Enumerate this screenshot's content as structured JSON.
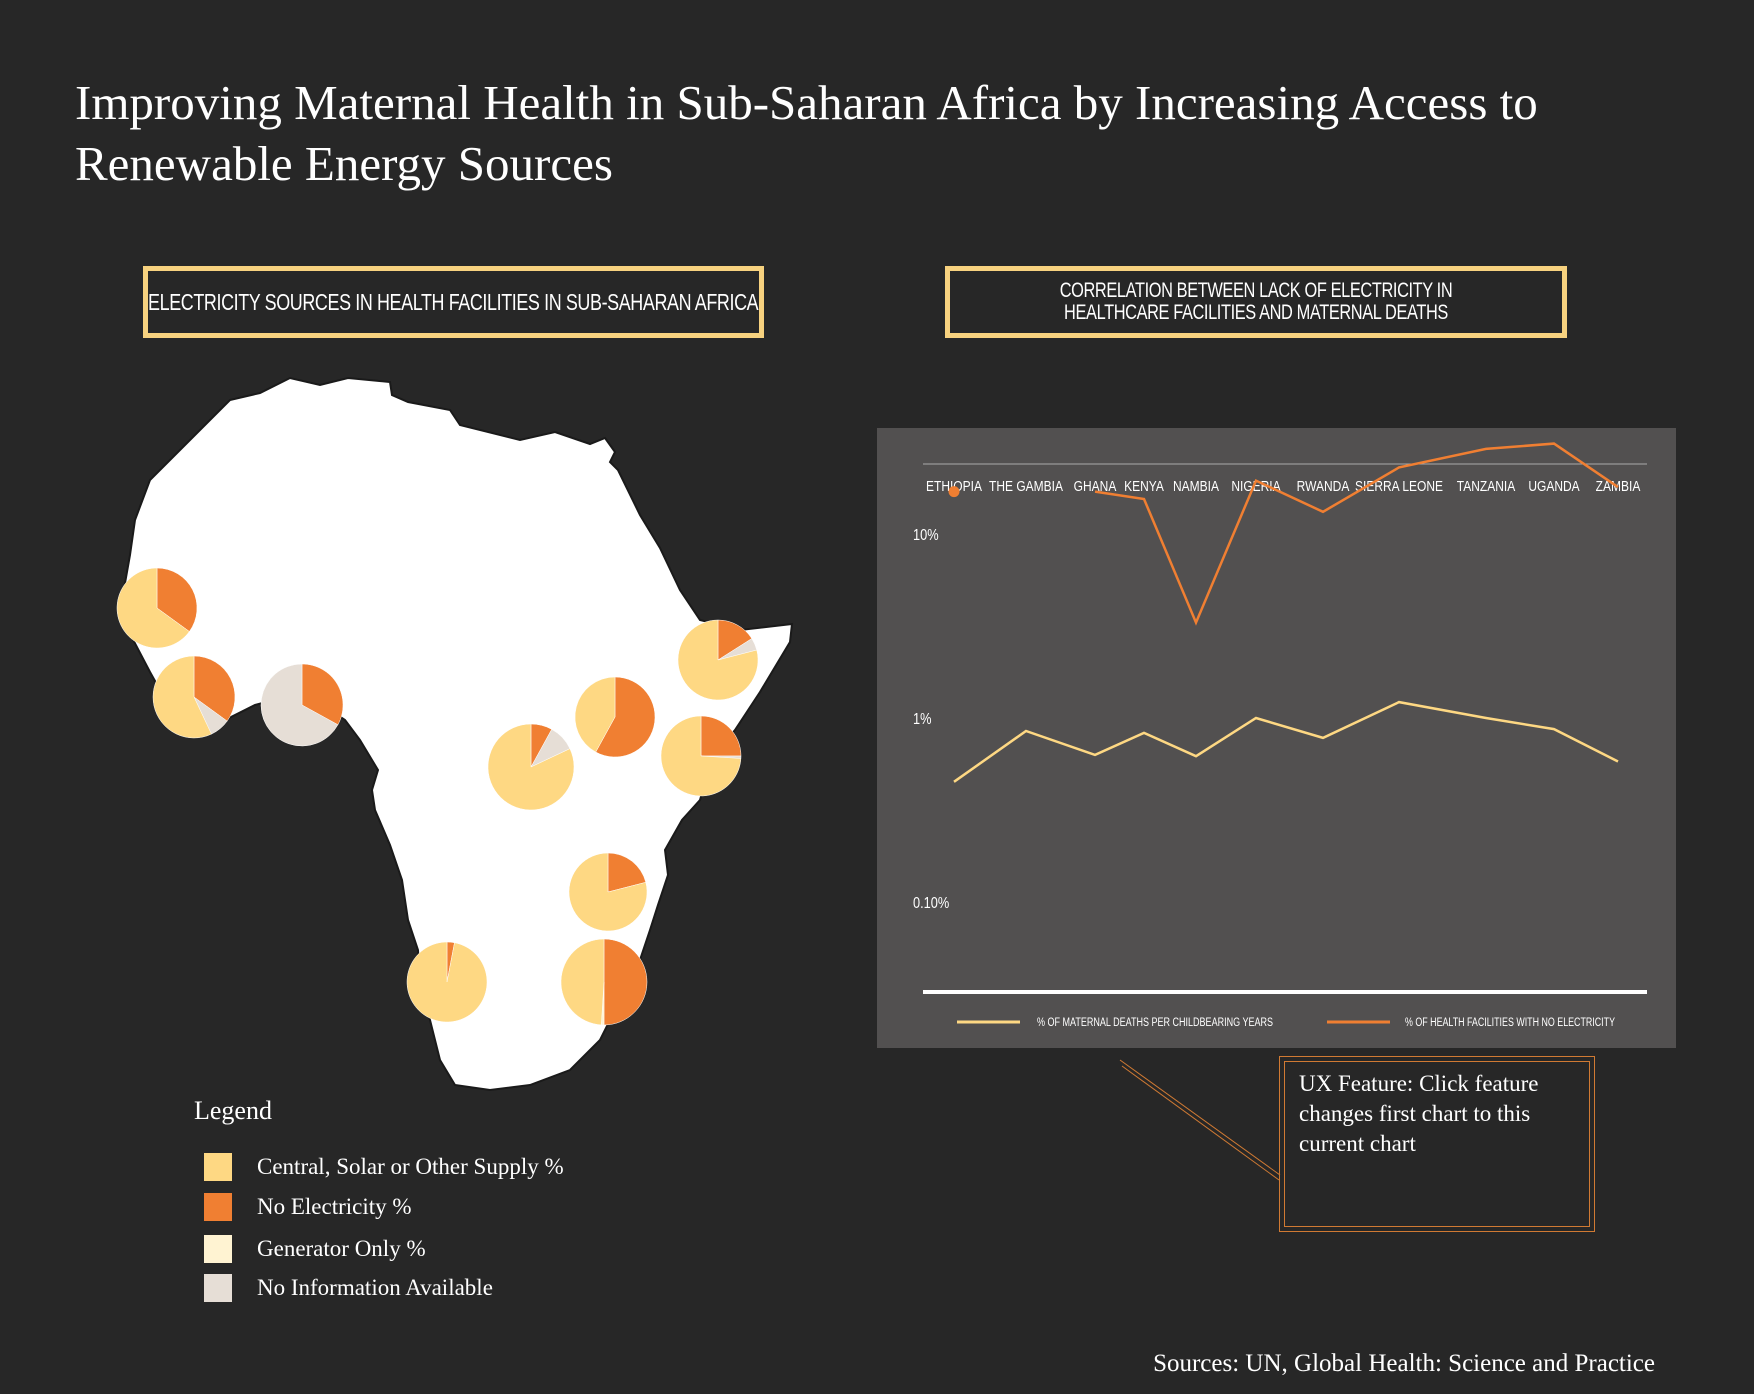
{
  "title": "Improving Maternal Health in Sub-Saharan Africa by Increasing Access to Renewable Energy Sources",
  "map_section": {
    "heading": "Electricity Sources in Health Facilities in Sub-Saharan Africa"
  },
  "chart_section": {
    "heading": "Correlation between lack of electricity in healthcare facilities and maternal deaths"
  },
  "colors": {
    "central": "#fed883",
    "no_electricity": "#f07f32",
    "generator": "#fff3d2",
    "no_info": "#e6ded6",
    "background": "#272727",
    "panel": "#525050",
    "africa": "#ffffff",
    "accent_border": "#f7d27f"
  },
  "legend": {
    "title": "Legend",
    "items": [
      {
        "label": "Central, Solar or Other Supply %",
        "color": "#fed883"
      },
      {
        "label": "No Electricity %",
        "color": "#f07f32"
      },
      {
        "label": "Generator Only %",
        "color": "#fff3d2"
      },
      {
        "label": "No Information Available",
        "color": "#e6ded6"
      }
    ]
  },
  "pie_charts": [
    {
      "central": 0.65,
      "no_electricity": 0.35,
      "generator": 0,
      "no_info": 0
    },
    {
      "central": 0.57,
      "no_electricity": 0.35,
      "generator": 0,
      "no_info": 0.08
    },
    {
      "central": 0,
      "no_electricity": 0.33,
      "generator": 0,
      "no_info": 0.67
    },
    {
      "central": 0.82,
      "no_electricity": 0.08,
      "generator": 0,
      "no_info": 0.1
    },
    {
      "central": 0.42,
      "no_electricity": 0.58,
      "generator": 0,
      "no_info": 0
    },
    {
      "central": 0.79,
      "no_electricity": 0.16,
      "generator": 0,
      "no_info": 0.05
    },
    {
      "central": 0.74,
      "no_electricity": 0.25,
      "generator": 0,
      "no_info": 0.01
    },
    {
      "central": 0.79,
      "no_electricity": 0.21,
      "generator": 0,
      "no_info": 0
    },
    {
      "central": 0.97,
      "no_electricity": 0.03,
      "generator": 0,
      "no_info": 0
    },
    {
      "central": 0.49,
      "no_electricity": 0.5,
      "generator": 0.01,
      "no_info": 0
    }
  ],
  "chart_data": {
    "type": "line",
    "categories": [
      "ETHIOPIA",
      "THE GAMBIA",
      "GHANA",
      "KENYA",
      "NAMBIA",
      "NIGERIA",
      "RWANDA",
      "SIERRA LEONE",
      "TANZANIA",
      "UGANDA",
      "ZAMBIA"
    ],
    "y_scale": "log",
    "y_ticks": [
      "10%",
      "1%",
      "0.10%"
    ],
    "ylim_percent": [
      0.05,
      30
    ],
    "grid": false,
    "legend_position": "bottom",
    "series": [
      {
        "name": "% of maternal deaths per childbearing years",
        "color": "#fed883",
        "values": [
          0.45,
          0.85,
          0.63,
          0.83,
          0.62,
          1.0,
          0.78,
          1.22,
          1.0,
          0.87,
          0.58
        ]
      },
      {
        "name": "% of health facilities with no electricity",
        "color": "#f07f32",
        "values": [
          17,
          null,
          17,
          15.5,
          3.3,
          19.5,
          13.2,
          23,
          29,
          31,
          18
        ]
      }
    ]
  },
  "ux_note": "UX Feature: Click feature changes first chart to this current chart",
  "sources": "Sources: UN, Global Health: Science and Practice"
}
